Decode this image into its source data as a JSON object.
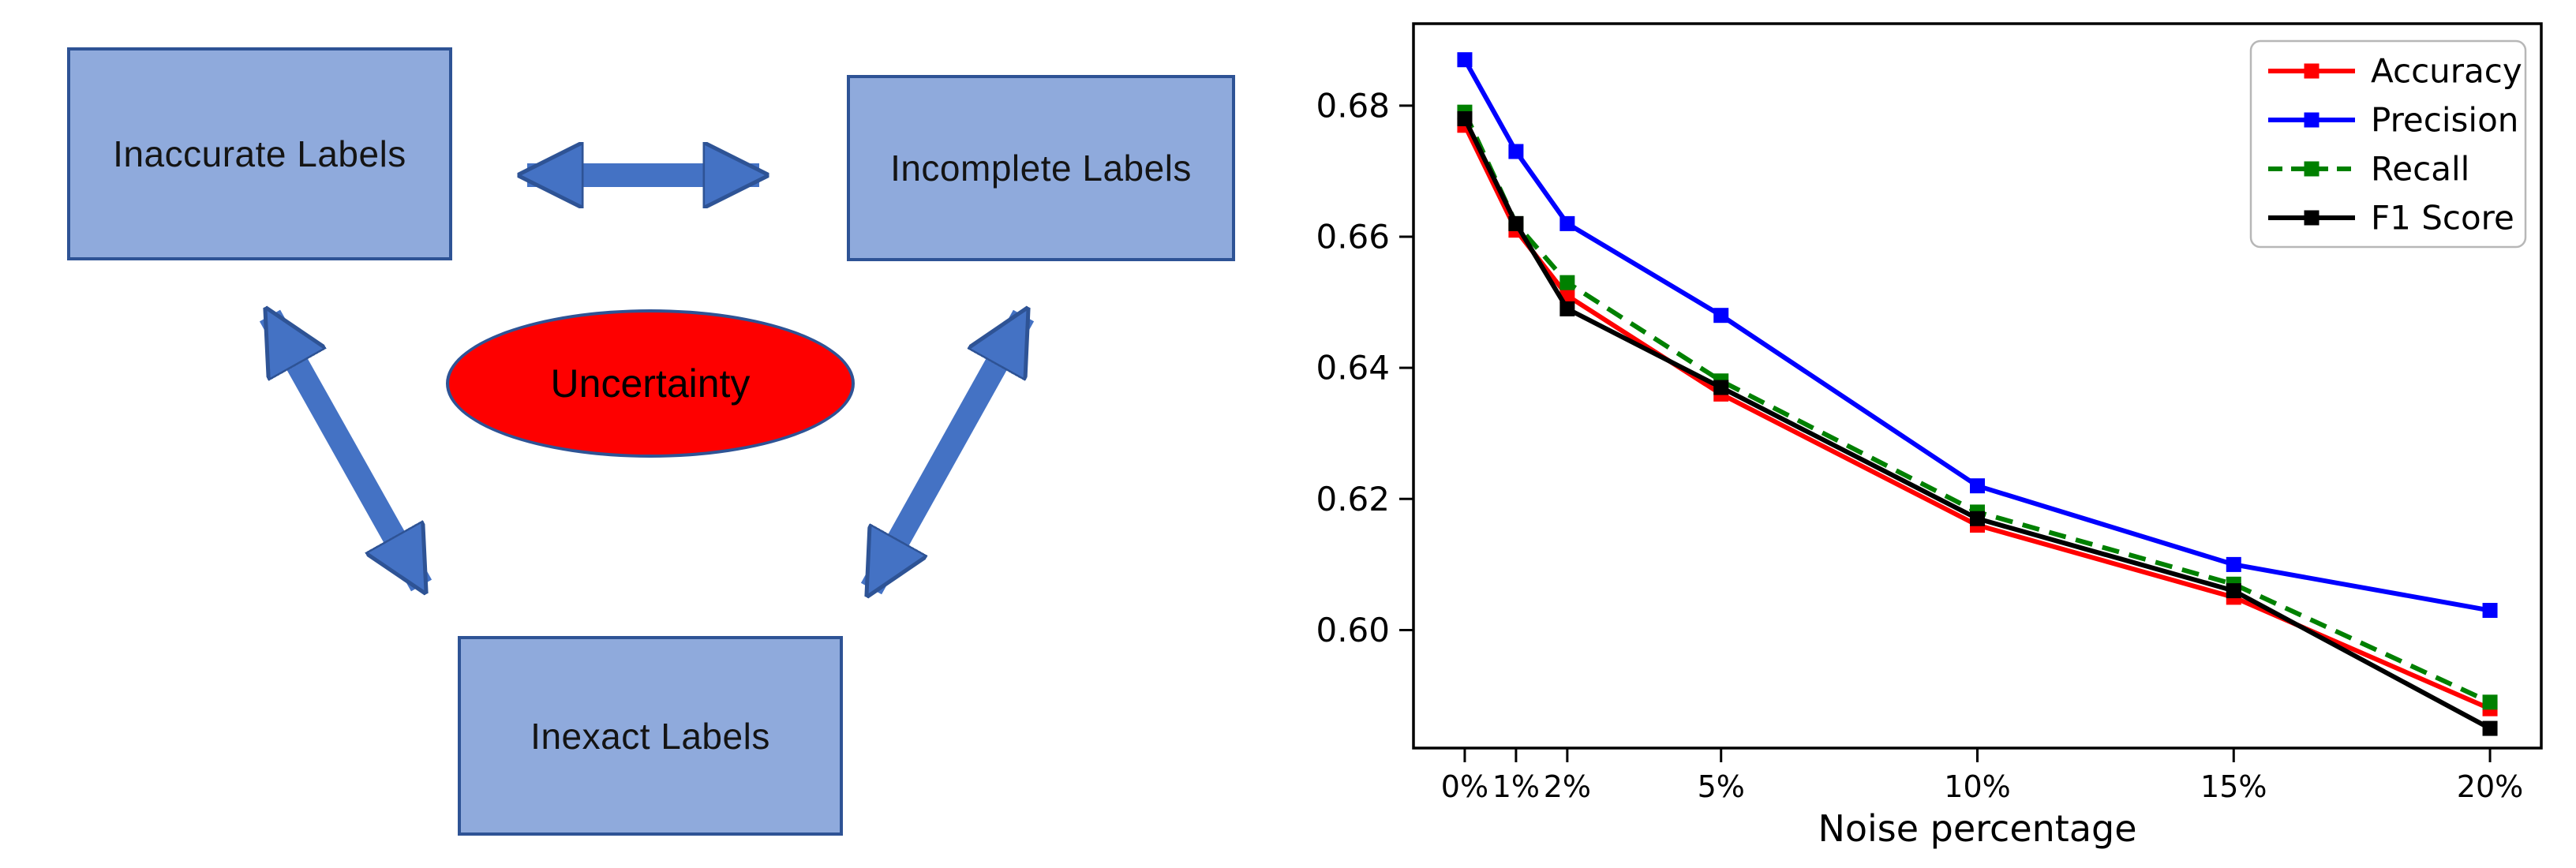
{
  "diagram": {
    "nodes": [
      {
        "id": "inaccurate",
        "label": "Inaccurate Labels"
      },
      {
        "id": "incomplete",
        "label": "Incomplete Labels"
      },
      {
        "id": "inexact",
        "label": "Inexact Labels"
      }
    ],
    "center": {
      "label": "Uncertainty"
    },
    "colors": {
      "box_fill": "#8faadc",
      "box_border": "#2e5395",
      "arrow": "#4472c4",
      "ellipse_fill": "#fe0000"
    }
  },
  "chart_data": {
    "type": "line",
    "title": "",
    "xlabel": "Noise percentage",
    "ylabel": "",
    "categories": [
      "0%",
      "1%",
      "2%",
      "5%",
      "10%",
      "15%",
      "20%"
    ],
    "x_numeric": [
      0,
      1,
      2,
      5,
      10,
      15,
      20
    ],
    "xlim": [
      -1,
      21
    ],
    "ylim": [
      0.582,
      0.6925
    ],
    "yticks": [
      0.68,
      0.66,
      0.64,
      0.62,
      0.6
    ],
    "grid": false,
    "legend_position": "upper right",
    "series": [
      {
        "name": "Accuracy",
        "color": "#ff0000",
        "dash": "solid",
        "marker": "square",
        "values": [
          0.677,
          0.661,
          0.651,
          0.636,
          0.616,
          0.605,
          0.588
        ]
      },
      {
        "name": "Precision",
        "color": "#0000ff",
        "dash": "solid",
        "marker": "square",
        "values": [
          0.687,
          0.673,
          0.662,
          0.648,
          0.622,
          0.61,
          0.603
        ]
      },
      {
        "name": "Recall",
        "color": "#008000",
        "dash": "dashed",
        "marker": "square",
        "values": [
          0.679,
          0.662,
          0.653,
          0.638,
          0.618,
          0.607,
          0.589
        ]
      },
      {
        "name": "F1 Score",
        "color": "#000000",
        "dash": "solid",
        "marker": "square",
        "values": [
          0.678,
          0.662,
          0.649,
          0.637,
          0.617,
          0.606,
          0.585
        ]
      }
    ]
  }
}
